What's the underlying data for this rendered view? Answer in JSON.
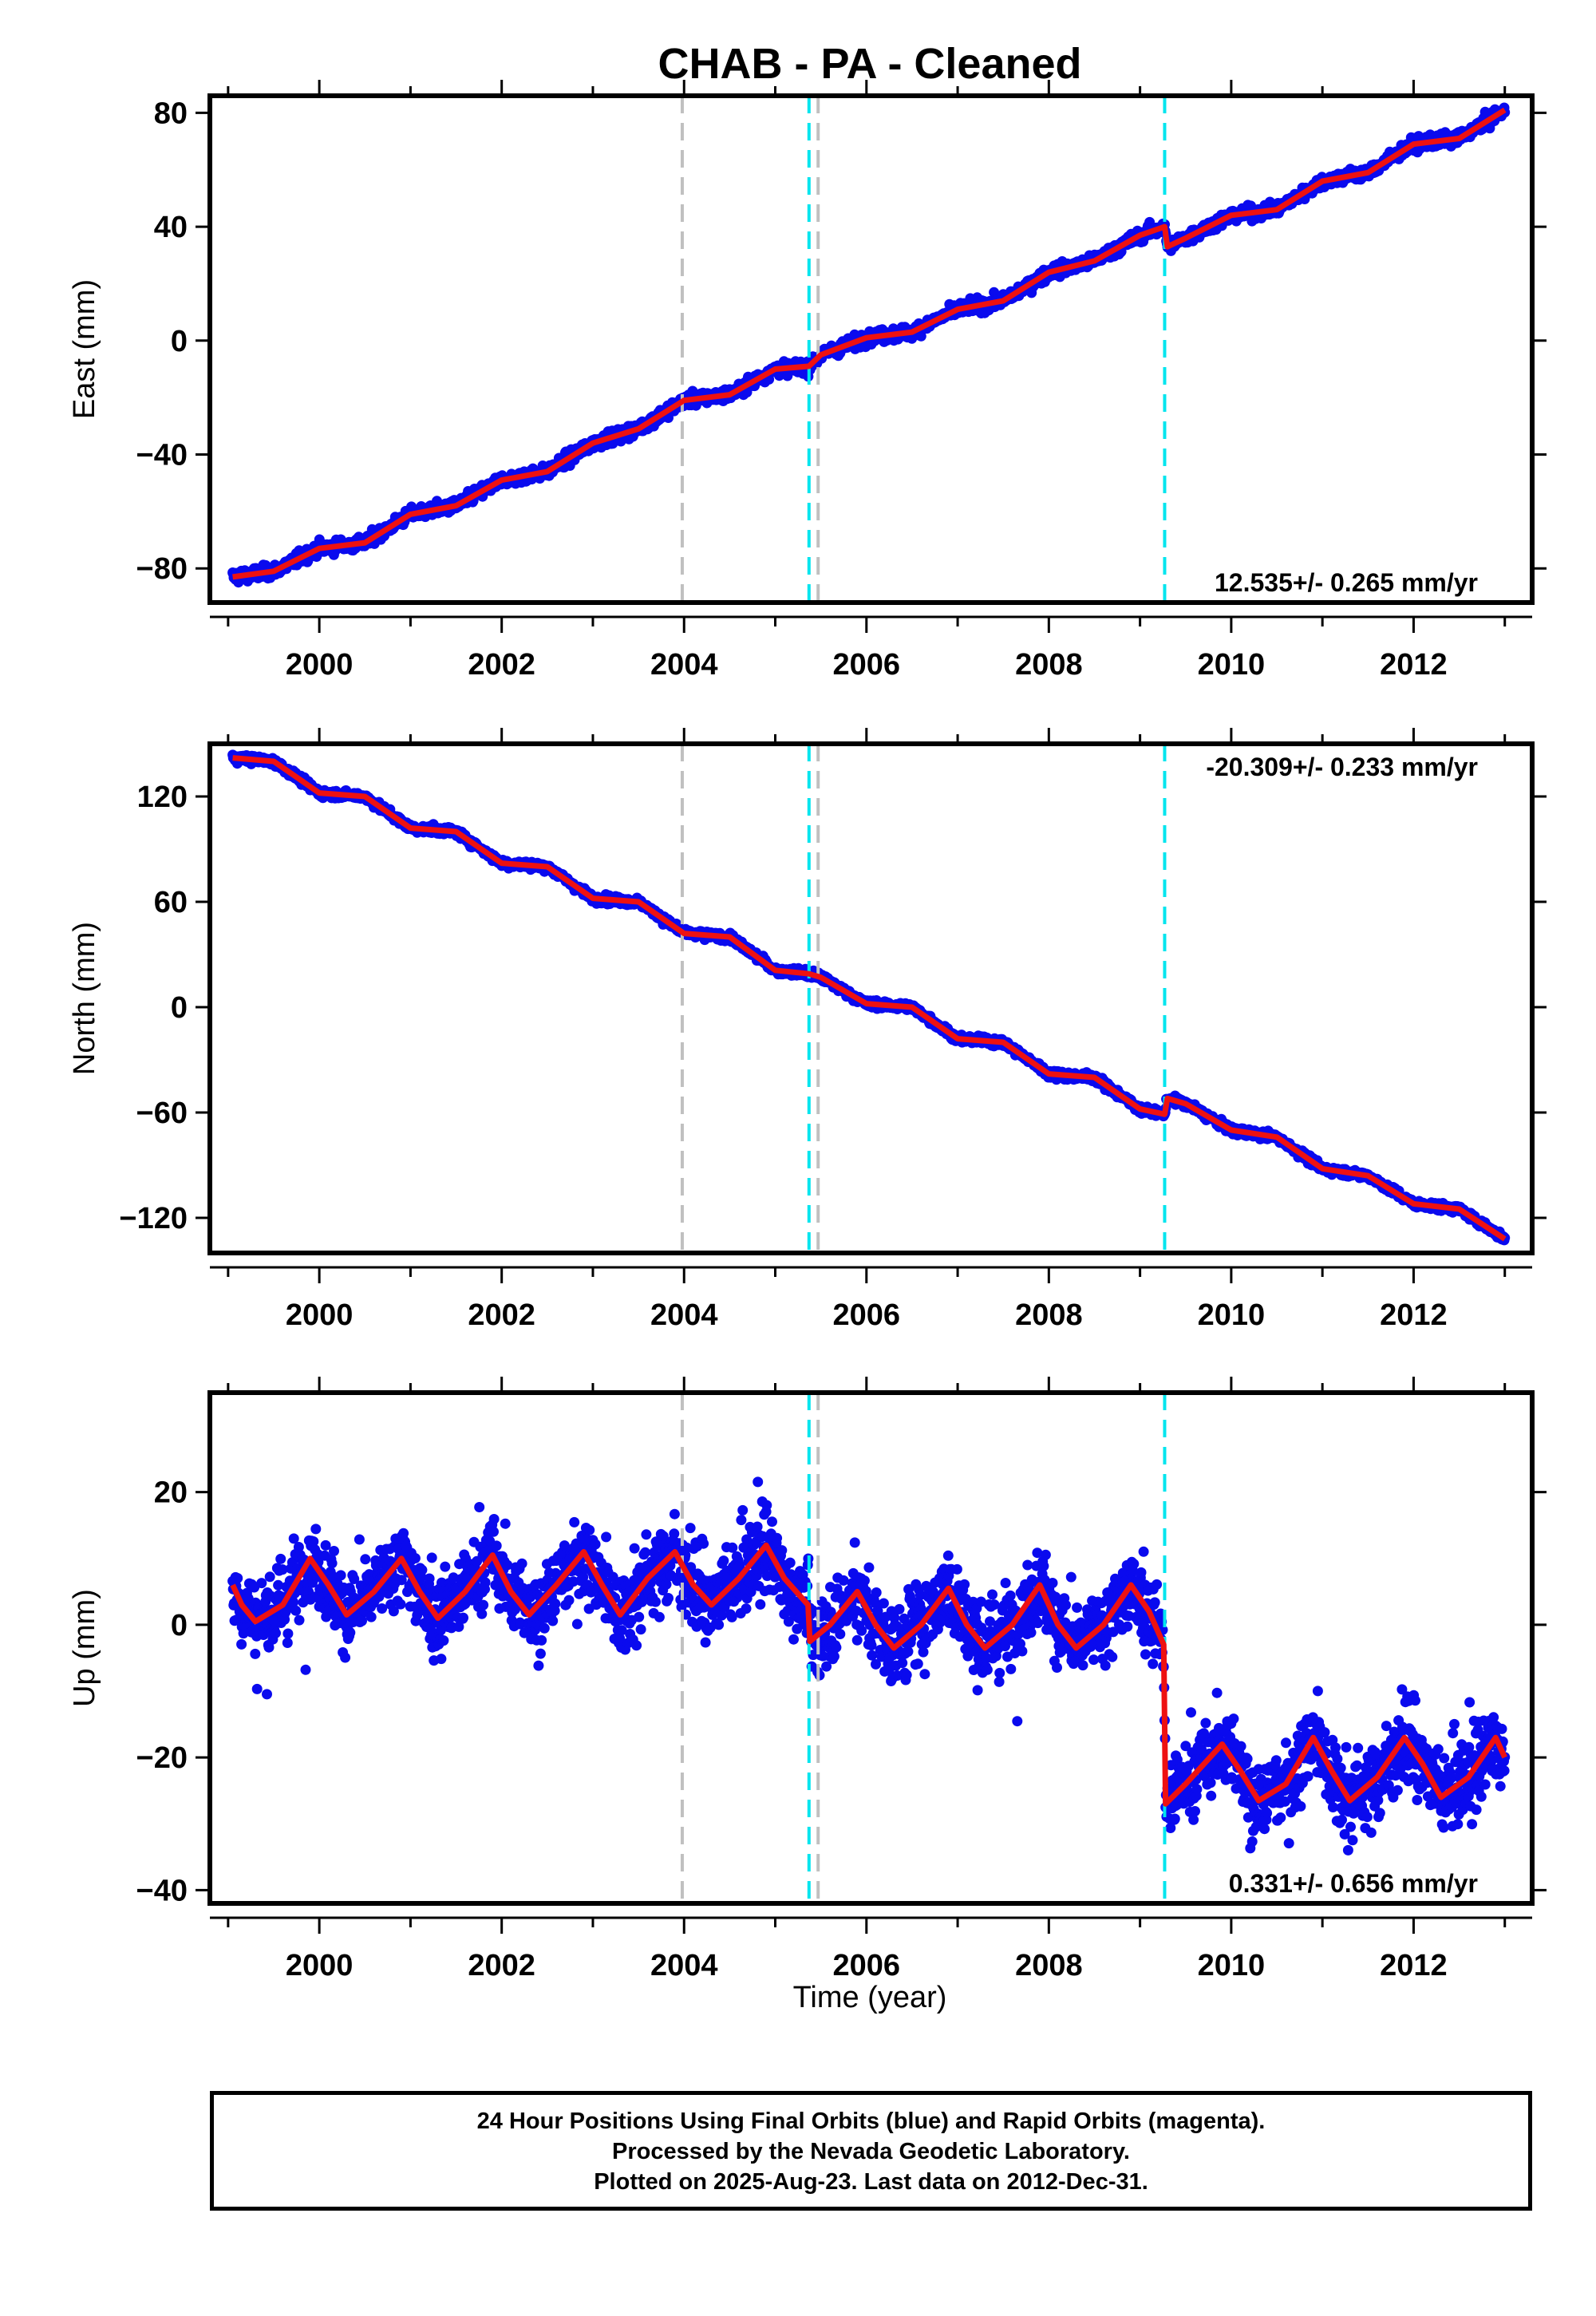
{
  "figure": {
    "title": "CHAB  - PA - Cleaned",
    "xlabel": "Time (year)",
    "caption": [
      "24 Hour Positions Using Final Orbits (blue) and Rapid Orbits (magenta).",
      "Processed by the Nevada Geodetic Laboratory.",
      "Plotted on 2025-Aug-23. Last data on 2012-Dec-31."
    ],
    "colors": {
      "data": "#0a0aee",
      "model": "#ee1111",
      "gray_line": "#c0c0c0",
      "cyan_line": "#00e5ee",
      "frame": "#000000"
    }
  },
  "chart_data": [
    {
      "type": "scatter",
      "name": "East",
      "ylabel": "East (mm)",
      "xlim": [
        1998.8,
        2013.3
      ],
      "ylim": [
        -92,
        86
      ],
      "xticks": [
        2000,
        2002,
        2004,
        2006,
        2008,
        2010,
        2012
      ],
      "yticks": [
        -80,
        -40,
        0,
        40,
        80
      ],
      "rate_label": "12.535+/- 0.265 mm/yr",
      "rate_position": "bottom-right",
      "vlines": [
        {
          "x": 2003.98,
          "color": "gray"
        },
        {
          "x": 2005.37,
          "color": "cyan"
        },
        {
          "x": 2005.47,
          "color": "gray"
        },
        {
          "x": 2009.27,
          "color": "cyan"
        }
      ],
      "series": [
        {
          "name": "East",
          "x": [
            1999.05,
            1999.5,
            2000.0,
            2000.5,
            2001.0,
            2001.5,
            2002.0,
            2002.5,
            2003.0,
            2003.5,
            2004.0,
            2004.5,
            2005.0,
            2005.37,
            2005.5,
            2006.0,
            2006.5,
            2007.0,
            2007.5,
            2008.0,
            2008.5,
            2009.0,
            2009.27,
            2009.3,
            2009.5,
            2010.0,
            2010.5,
            2011.0,
            2011.5,
            2012.0,
            2012.5,
            2013.0
          ],
          "y": [
            -83,
            -81,
            -73,
            -71,
            -61,
            -58,
            -49,
            -46,
            -36,
            -31,
            -21,
            -19,
            -10,
            -9,
            -5,
            1,
            3,
            11,
            14,
            24,
            28,
            37,
            40,
            33,
            36,
            44,
            46,
            56,
            59,
            69,
            71,
            81
          ]
        }
      ]
    },
    {
      "type": "scatter",
      "name": "North",
      "ylabel": "North (mm)",
      "xlim": [
        1998.8,
        2013.3
      ],
      "ylim": [
        -140,
        150
      ],
      "xticks": [
        2000,
        2002,
        2004,
        2006,
        2008,
        2010,
        2012
      ],
      "yticks": [
        -120,
        -60,
        0,
        60,
        120
      ],
      "rate_label": "-20.309+/- 0.233 mm/yr",
      "rate_position": "top-right",
      "vlines": [
        {
          "x": 2003.98,
          "color": "gray"
        },
        {
          "x": 2005.37,
          "color": "cyan"
        },
        {
          "x": 2005.47,
          "color": "gray"
        },
        {
          "x": 2009.27,
          "color": "cyan"
        }
      ],
      "series": [
        {
          "name": "North",
          "x": [
            1999.05,
            1999.5,
            2000.0,
            2000.5,
            2001.0,
            2001.5,
            2002.0,
            2002.5,
            2003.0,
            2003.5,
            2004.0,
            2004.5,
            2005.0,
            2005.37,
            2005.5,
            2006.0,
            2006.5,
            2007.0,
            2007.5,
            2008.0,
            2008.5,
            2009.0,
            2009.27,
            2009.3,
            2009.5,
            2010.0,
            2010.5,
            2011.0,
            2011.5,
            2012.0,
            2012.5,
            2013.0
          ],
          "y": [
            142,
            140,
            122,
            120,
            102,
            100,
            82,
            80,
            62,
            60,
            42,
            40,
            21,
            19,
            17,
            2,
            0,
            -18,
            -20,
            -38,
            -40,
            -58,
            -61,
            -52,
            -55,
            -70,
            -74,
            -92,
            -96,
            -112,
            -115,
            -132
          ]
        }
      ]
    },
    {
      "type": "scatter",
      "name": "Up",
      "ylabel": "Up (mm)",
      "xlim": [
        1998.8,
        2013.3
      ],
      "ylim": [
        -42,
        35
      ],
      "xticks": [
        2000,
        2002,
        2004,
        2006,
        2008,
        2010,
        2012
      ],
      "yticks": [
        -40,
        -20,
        0,
        20
      ],
      "rate_label": "0.331+/- 0.656 mm/yr",
      "rate_position": "bottom-right",
      "vlines": [
        {
          "x": 2003.98,
          "color": "gray"
        },
        {
          "x": 2005.37,
          "color": "cyan"
        },
        {
          "x": 2005.47,
          "color": "gray"
        },
        {
          "x": 2009.27,
          "color": "cyan"
        }
      ],
      "series": [
        {
          "name": "Up",
          "x": [
            1999.05,
            1999.15,
            1999.3,
            1999.6,
            1999.9,
            2000.1,
            2000.3,
            2000.6,
            2000.9,
            2001.1,
            2001.3,
            2001.6,
            2001.9,
            2002.1,
            2002.3,
            2002.6,
            2002.9,
            2003.1,
            2003.3,
            2003.6,
            2003.9,
            2004.1,
            2004.3,
            2004.6,
            2004.9,
            2005.1,
            2005.36,
            2005.38,
            2005.6,
            2005.9,
            2006.1,
            2006.3,
            2006.6,
            2006.9,
            2007.1,
            2007.3,
            2007.6,
            2007.9,
            2008.1,
            2008.3,
            2008.6,
            2008.9,
            2009.1,
            2009.26,
            2009.28,
            2009.5,
            2009.9,
            2010.1,
            2010.3,
            2010.6,
            2010.9,
            2011.1,
            2011.3,
            2011.6,
            2011.9,
            2012.1,
            2012.3,
            2012.6,
            2012.9,
            2013.0
          ],
          "y": [
            6,
            3,
            0.5,
            3,
            10,
            6,
            1.5,
            5,
            10,
            5,
            1,
            5,
            10.5,
            5,
            1.5,
            6,
            11,
            6,
            1.5,
            7,
            11,
            6,
            3,
            7,
            12,
            7,
            3,
            -2.5,
            0,
            5,
            0,
            -3.5,
            0,
            5.5,
            0,
            -3.5,
            0,
            6,
            0,
            -3.5,
            0,
            6,
            2,
            -3,
            -27,
            -24,
            -18,
            -22,
            -26.5,
            -24,
            -17,
            -22,
            -26.5,
            -23,
            -17,
            -21,
            -26,
            -23,
            -17,
            -20
          ]
        }
      ]
    }
  ]
}
